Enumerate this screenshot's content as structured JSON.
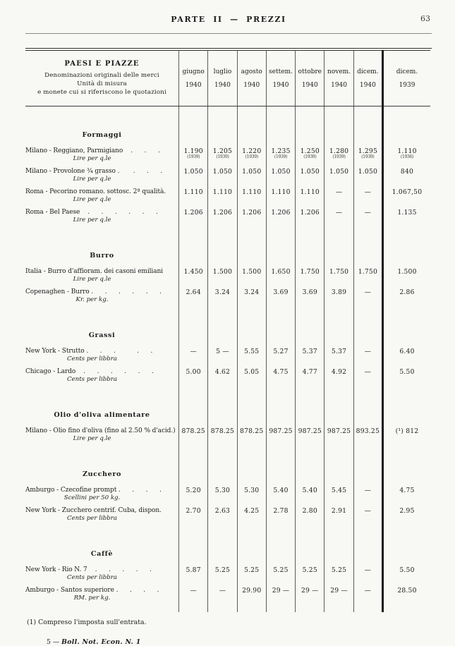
{
  "page_header": {
    "title": "PARTE II — PREZZI",
    "page_number": "63"
  },
  "table": {
    "stub_header": [
      "PAESI E PIAZZE",
      "Denominazioni originali delle merci",
      "Unità di misura",
      "e monete cui si riferiscono le quotazioni"
    ],
    "month_columns": [
      {
        "month": "giugno",
        "year": "1940"
      },
      {
        "month": "luglio",
        "year": "1940"
      },
      {
        "month": "agosto",
        "year": "1940"
      },
      {
        "month": "settem.",
        "year": "1940"
      },
      {
        "month": "ottobre",
        "year": "1940"
      },
      {
        "month": "novem.",
        "year": "1940"
      },
      {
        "month": "dicem.",
        "year": "1940"
      },
      {
        "month": "dicem.",
        "year": "1939"
      }
    ],
    "sections": [
      {
        "heading": "Formaggi",
        "rows": [
          {
            "label": "Milano - Reggiano, Parmigiano    .      .      .",
            "unit": "Lire per q.le",
            "values": [
              "1.190",
              "1.205",
              "1.220",
              "1.235",
              "1.250",
              "1.280",
              "1.295",
              "1.110"
            ],
            "subvalues": [
              "(1939)",
              "(1939)",
              "(1939)",
              "(1939)",
              "(1939)",
              "(1939)",
              "(1939)",
              "(1936)"
            ]
          },
          {
            "label": "Milano - Provolone ¾ grasso .       .      .      .",
            "unit": "Lire per q.le",
            "values": [
              "1.050",
              "1.050",
              "1.050",
              "1.050",
              "1.050",
              "1.050",
              "1.050",
              "840"
            ]
          },
          {
            "label": "Roma - Pecorino romano. sottosc. 2ª qualità.",
            "unit": "Lire per q.le",
            "values": [
              "1.110",
              "1.110",
              "1.110",
              "1.110",
              "1.110",
              "—",
              "—",
              "1.067,50"
            ]
          },
          {
            "label": "Roma - Bel Paese    .      .      .      .      .      .",
            "unit": "Lire per q.le",
            "values": [
              "1.206",
              "1.206",
              "1.206",
              "1.206",
              "1.206",
              "—",
              "—",
              "1.135"
            ]
          }
        ]
      },
      {
        "heading": "Burro",
        "rows": [
          {
            "label": "Italia - Burro d'affioram. dei casoni emiliani",
            "unit": "Lire per q.le",
            "values": [
              "1.450",
              "1.500",
              "1.500",
              "1.650",
              "1.750",
              "1.750",
              "1.750",
              "1.500"
            ]
          },
          {
            "label": "Copenaghen - Burro .      .      .      .      .      .",
            "unit": "Kr. per kg.",
            "values": [
              "2.64",
              "3.24",
              "3.24",
              "3.69",
              "3.69",
              "3.89",
              "—",
              "2.86"
            ]
          }
        ]
      },
      {
        "heading": "Grassi",
        "rows": [
          {
            "label": "New York - Strutto .      .      .           .      .",
            "unit": "Cents per libbra",
            "values": [
              "—",
              "5 —",
              "5.55",
              "5.27",
              "5.37",
              "5.37",
              "—",
              "6.40"
            ]
          },
          {
            "label": "Chicago - Lardo    .      .      .      .      .      .",
            "unit": "Cents per libbra",
            "values": [
              "5.00",
              "4.62",
              "5.05",
              "4.75",
              "4.77",
              "4.92",
              "—",
              "5.50"
            ]
          }
        ]
      },
      {
        "heading": "Olio d'oliva alimentare",
        "rows": [
          {
            "label": "Milano - Olio fino d'oliva (fino al 2.50 % d'acid.)",
            "unit": "Lire per q.le",
            "values": [
              "878.25",
              "878.25",
              "878.25",
              "987.25",
              "987.25",
              "987.25",
              "893.25",
              "(¹) 812"
            ]
          }
        ]
      },
      {
        "heading": "Zucchero",
        "rows": [
          {
            "label": "Amburgo - Czecofine prompt .      .      .      .",
            "unit": "Scellini per 50 kg.",
            "values": [
              "5.20",
              "5.30",
              "5.30",
              "5.40",
              "5.40",
              "5.45",
              "—",
              "4.75"
            ]
          },
          {
            "label": "New York - Zucchero centrif. Cuba, dispon.",
            "unit": "Cents per libbra",
            "values": [
              "2.70",
              "2.63",
              "4.25",
              "2.78",
              "2.80",
              "2.91",
              "—",
              "2.95"
            ]
          }
        ]
      },
      {
        "heading": "Caffè",
        "rows": [
          {
            "label": "New York - Rio N. 7    .      .      .      .      .",
            "unit": "Cents per libbra",
            "values": [
              "5.87",
              "5.25",
              "5.25",
              "5.25",
              "5.25",
              "5.25",
              "—",
              "5.50"
            ]
          },
          {
            "label": "Amburgo - Santos superiore .      .      .      .",
            "unit": "RM. per kg.",
            "values": [
              "—",
              "—",
              "29.90",
              "29 —",
              "29 —",
              "29 —",
              "—",
              "28.50"
            ]
          }
        ]
      }
    ]
  },
  "footnote": "(1) Compreso l'imposta sull'entrata.",
  "footer": {
    "prefix": "5 — ",
    "italic": "Boll. Not. Econ. N. 1"
  }
}
